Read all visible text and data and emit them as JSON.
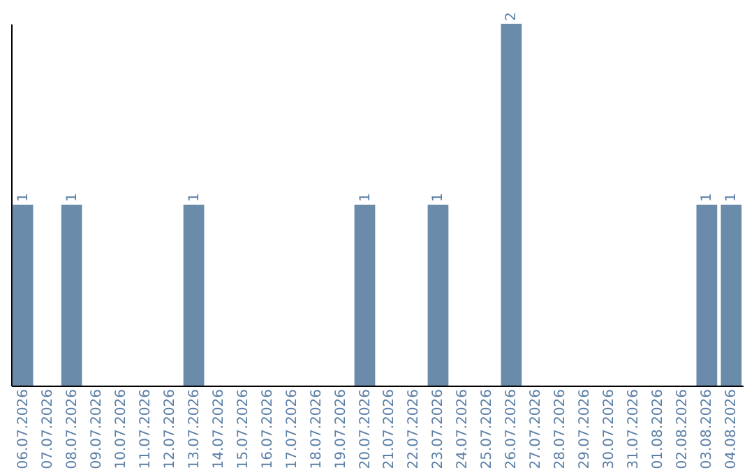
{
  "chart_data": {
    "type": "bar",
    "categories": [
      "06.07.2026",
      "07.07.2026",
      "08.07.2026",
      "09.07.2026",
      "10.07.2026",
      "11.07.2026",
      "12.07.2026",
      "13.07.2026",
      "14.07.2026",
      "15.07.2026",
      "16.07.2026",
      "17.07.2026",
      "18.07.2026",
      "19.07.2026",
      "20.07.2026",
      "21.07.2026",
      "22.07.2026",
      "23.07.2026",
      "24.07.2026",
      "25.07.2026",
      "26.07.2026",
      "27.07.2026",
      "28.07.2026",
      "29.07.2026",
      "30.07.2026",
      "31.07.2026",
      "01.08.2026",
      "02.08.2026",
      "03.08.2026",
      "04.08.2026"
    ],
    "values": [
      1,
      0,
      1,
      0,
      0,
      0,
      0,
      1,
      0,
      0,
      0,
      0,
      0,
      0,
      1,
      0,
      0,
      1,
      0,
      0,
      2,
      0,
      0,
      0,
      0,
      0,
      0,
      0,
      1,
      1
    ],
    "value_labels": [
      "1",
      null,
      "1",
      null,
      null,
      null,
      null,
      "1",
      null,
      null,
      null,
      null,
      null,
      null,
      "1",
      null,
      null,
      "1",
      null,
      null,
      "2",
      null,
      null,
      null,
      null,
      null,
      null,
      null,
      "1",
      "1"
    ],
    "color": "#6b8bab",
    "ylim": [
      0,
      2
    ],
    "tick_labels": "x"
  }
}
